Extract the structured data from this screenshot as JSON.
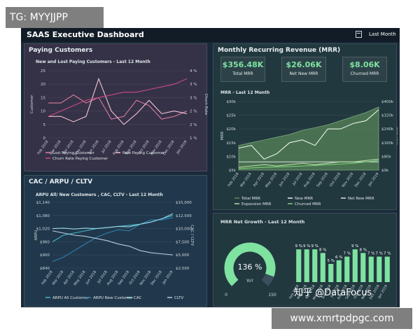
{
  "watermarks": {
    "top": "TG: MYYJJPP",
    "bottom": "www.xmrtpdpgc.com",
    "zhihu": "知乎 @DataFocus"
  },
  "header": {
    "title": "SAAS Executive Dashboard",
    "period": "Last Month"
  },
  "colors": {
    "bg": "#1a2a3a",
    "green": "#7ee2a0",
    "pink": "#e0739b",
    "teal": "#42d6c6"
  },
  "months": [
    "Feb 2018",
    "Mar 2018",
    "Apr 2018",
    "May 2018",
    "Jun 2018",
    "Jul 2018",
    "Aug 2018",
    "Sep 2018",
    "Oct 2018",
    "Nov 2018",
    "Dec 2018",
    "Jan 2019"
  ],
  "panels": {
    "paying": {
      "title": "Paying Customers",
      "subtitle": "New and Lost Paying Customers - Last 12 Month"
    },
    "cac": {
      "title": "CAC / ARPU / CLTV",
      "subtitle": "ARPU All/ New Customers , CAC, CLTV - Last 12 Month"
    },
    "mrr": {
      "title": "Monthly Recurring Revenue (MRR)",
      "subtitle": "MRR - Last 12 Month"
    },
    "growth": {
      "title": "MRR Net Growth - Last 12 Month"
    }
  },
  "kpis": [
    {
      "value": "$356.48K",
      "label": "Total MRR"
    },
    {
      "value": "$26.06K",
      "label": "Net New MRR"
    },
    {
      "value": "$8.06K",
      "label": "Churned MRR"
    }
  ],
  "gauge": {
    "value": "136 %",
    "label": "YoY",
    "min": "0",
    "max": "150",
    "fraction": 0.907
  },
  "chart_data": [
    {
      "type": "line",
      "title": "New and Lost Paying Customers - Last 12 Month",
      "ylabel": "Customer",
      "y2label": "Churn Rate",
      "yticks": [
        "0",
        "5",
        "10",
        "15",
        "20",
        "25"
      ],
      "y2ticks": [
        "1 %",
        "2 %",
        "2 %",
        "3 %",
        "3 %",
        "4 %"
      ],
      "ylim": [
        0,
        25
      ],
      "series": [
        {
          "name": "Lost Paying Customer",
          "color": "#e07aa0",
          "values": [
            13,
            13,
            16,
            13,
            15,
            7,
            8,
            14,
            12,
            7,
            8,
            10
          ]
        },
        {
          "name": "New Paying Customer",
          "color": "#f3c1d3",
          "values": [
            8,
            8,
            6,
            8,
            22,
            10,
            5,
            9,
            14,
            9,
            10,
            9
          ]
        },
        {
          "name": "Churn Rate Paying Customer",
          "color": "#c94a85",
          "values": [
            8,
            10,
            12,
            14,
            15,
            16,
            17,
            17,
            18,
            19,
            20,
            22
          ]
        }
      ]
    },
    {
      "type": "line",
      "title": "ARPU All/ New Customers , CAC, CLTV - Last 12 Month",
      "ylabel": "ARPU",
      "y2label": "CAC / CLTV",
      "yticks": [
        "$840",
        "$900",
        "$960",
        "$1,020",
        "$1,080",
        "$1,140"
      ],
      "y2ticks": [
        "$2,500",
        "$5,000",
        "$7,500",
        "$10,000",
        "$12,500",
        "$15,000"
      ],
      "ylim": [
        840,
        1140
      ],
      "series": [
        {
          "name": "ARPU All Customer",
          "color": "#3fb7c8",
          "values": [
            960,
            990,
            1000,
            1010,
            1020,
            1025,
            1030,
            1035,
            1040,
            1050,
            1065,
            1080
          ]
        },
        {
          "name": "ARPU New Customer",
          "color": "#2f7fb0",
          "values": [
            870,
            890,
            920,
            950,
            980,
            1000,
            1015,
            1010,
            1040,
            1060,
            1060,
            1070
          ]
        },
        {
          "name": "CAC",
          "color": "#9ad6e6",
          "values": [
            1020,
            1022,
            1018,
            1022,
            1020,
            1025,
            1030,
            1028,
            1040,
            1050,
            1065,
            1088
          ]
        },
        {
          "name": "CLTV",
          "color": "#b6cddd",
          "values": [
            1010,
            1000,
            990,
            985,
            975,
            965,
            950,
            940,
            920,
            910,
            905,
            900
          ]
        }
      ]
    },
    {
      "type": "area",
      "title": "MRR - Last 12 Month",
      "ylabel": "MRR",
      "y2label": "Total MRR",
      "yticks": [
        "$5k",
        "$10k",
        "$15k",
        "$20k",
        "$25k",
        "$30k"
      ],
      "y2ticks": [
        "$0k",
        "$80k",
        "$160k",
        "$240k",
        "$320k",
        "$400k"
      ],
      "ylim": [
        5,
        30
      ],
      "series": [
        {
          "name": "Total MRR",
          "color": "#5a8a5a",
          "values": [
            14,
            15,
            16,
            17,
            18,
            19.5,
            20.5,
            21.5,
            23,
            24.5,
            26,
            28
          ]
        },
        {
          "name": "New MRR",
          "color": "#e6f2ea",
          "values": [
            13,
            14,
            9,
            11,
            15,
            16,
            14,
            20,
            20,
            22,
            23,
            27
          ]
        },
        {
          "name": "Net New MRR",
          "color": "#d7dfe4",
          "values": [
            8,
            8,
            8,
            8,
            8,
            8,
            8,
            8,
            8,
            8,
            8,
            8
          ]
        },
        {
          "name": "Expansion MRR",
          "color": "#b8d9a5",
          "values": [
            6,
            6.5,
            7,
            6.5,
            7,
            7.5,
            7,
            7.5,
            8,
            8,
            8.5,
            9
          ]
        },
        {
          "name": "Churned MRR",
          "color": "#7cd07a",
          "values": [
            5.5,
            5.8,
            6,
            6.2,
            6.3,
            6.5,
            6.7,
            7,
            7.2,
            7.5,
            8,
            8.5
          ]
        }
      ]
    },
    {
      "type": "bar",
      "title": "MRR Net Growth - Last 12 Month",
      "categories": [
        "Feb 2018",
        "Mar 2018",
        "Apr 2018",
        "May 2018",
        "Jun 2018",
        "Jul 2018",
        "Aug 2018",
        "Sep 2018",
        "Oct 2018",
        "Nov 2018",
        "Dec 2018",
        "Jan 2019"
      ],
      "values": [
        9,
        9,
        9,
        8,
        5,
        6,
        7,
        9,
        8,
        7,
        7,
        7
      ],
      "labels": [
        "9 %",
        "9 %",
        "9 %",
        "8 %",
        "5 %",
        "6 %",
        "7 %",
        "9 %",
        "8 %",
        "7 %",
        "7 %",
        "7 %"
      ],
      "ylim": [
        0,
        10
      ]
    }
  ]
}
